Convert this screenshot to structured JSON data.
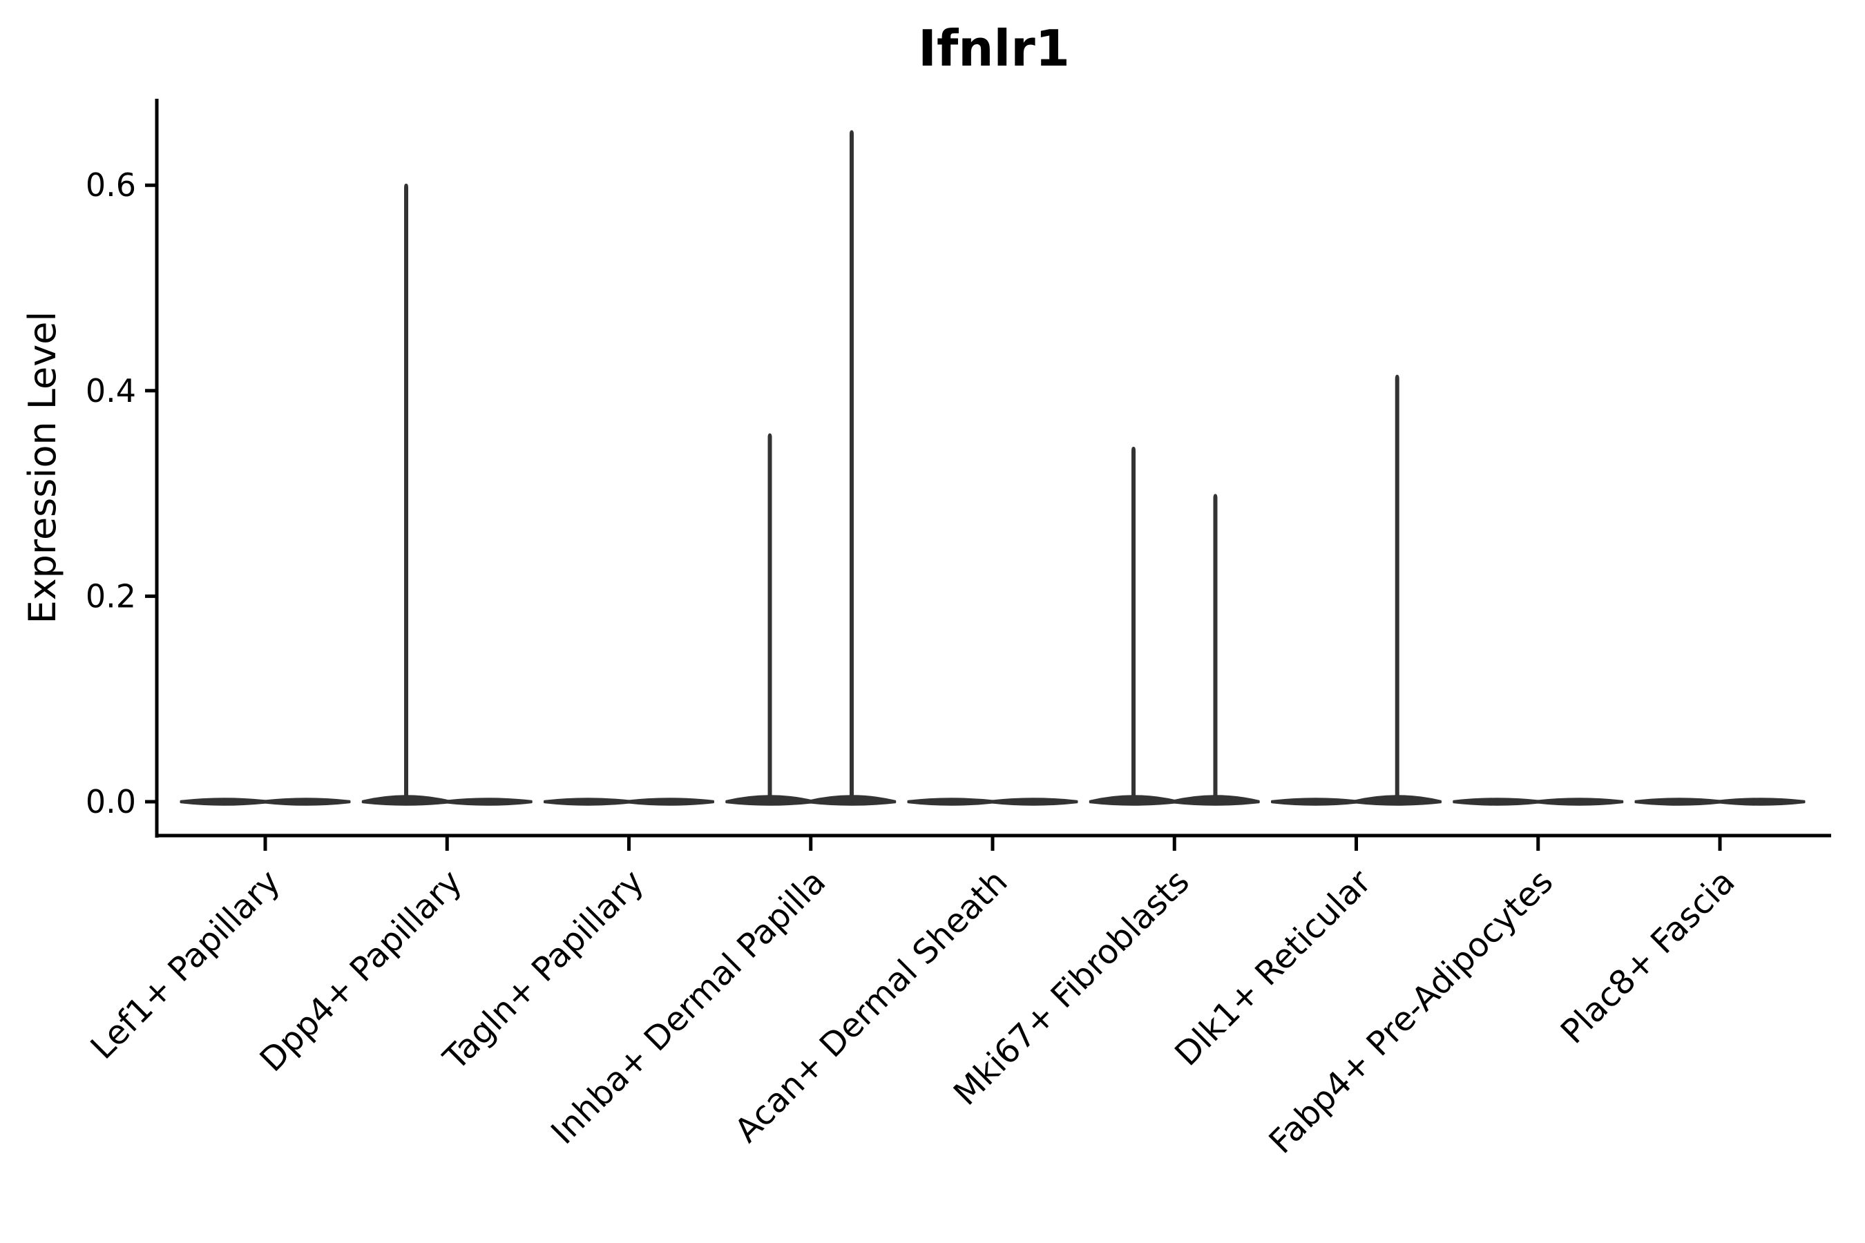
{
  "title": "Ifnlr1",
  "axes": {
    "y_label": "Expression Level"
  },
  "chart_data": {
    "type": "violin",
    "title": "Ifnlr1",
    "xlabel": "",
    "ylabel": "Expression Level",
    "categories": [
      "Lef1+ Papillary",
      "Dpp4+ Papillary",
      "Tagln+ Papillary",
      "Inhba+ Dermal Papilla",
      "Acan+ Dermal Sheath",
      "Mki67+ Fibroblasts",
      "Dlk1+ Reticular",
      "Fabp4+ Pre-Adipocytes",
      "Plac8+ Fascia"
    ],
    "y_tick_labels": [
      "0.0",
      "0.2",
      "0.4",
      "0.6"
    ],
    "y_tick_values": [
      0.0,
      0.2,
      0.4,
      0.6
    ],
    "ylim": [
      -0.034,
      0.684
    ],
    "x_tick_rotation_deg": 45,
    "grid": false,
    "legend": null,
    "description": "Single-cell expression violin plot; each category shows two dodged sub-violins that are flat at 0 expression with a thin spike rising to the maximum expression value.",
    "series": [
      {
        "name": "violin-left",
        "offset_units": -0.225,
        "max_expression": [
          0,
          0.601,
          0,
          0.358,
          0,
          0.345,
          0,
          0,
          0
        ]
      },
      {
        "name": "violin-right",
        "offset_units": 0.225,
        "max_expression": [
          0,
          0,
          0,
          0.653,
          0,
          0.299,
          0.415,
          0,
          0
        ]
      }
    ],
    "violin_color": "#333333",
    "spine_color": "#000000",
    "text_color": "#000000",
    "background_color": "#ffffff"
  }
}
